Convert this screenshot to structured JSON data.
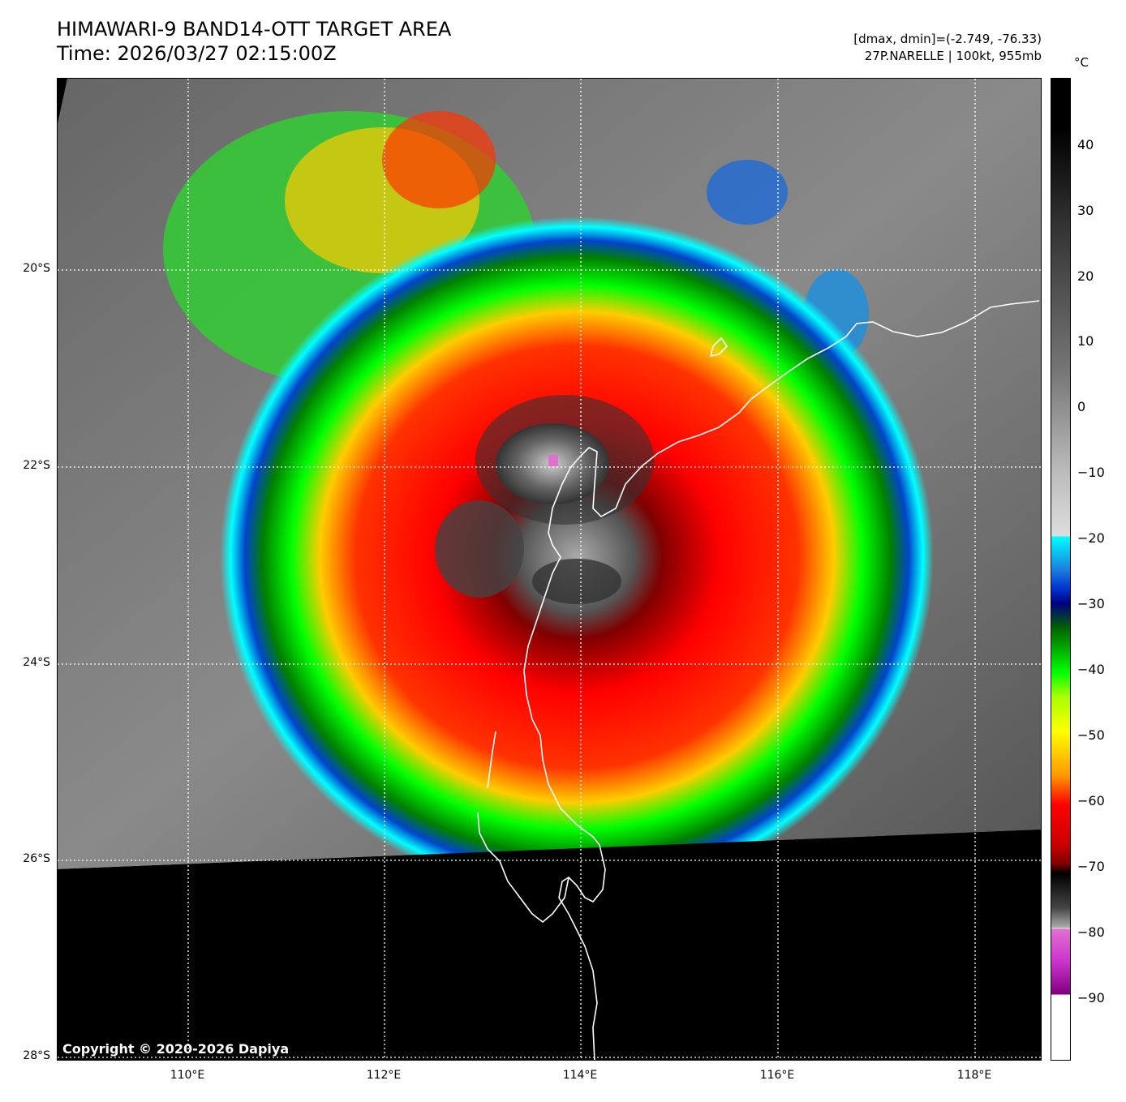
{
  "title": {
    "line1": "HIMAWARI-9 BAND14-OTT TARGET AREA",
    "line2": "Time: 2026/03/27 02:15:00Z"
  },
  "info": {
    "dmax_dmin": "[dmax, dmin]=(-2.749, -76.33)",
    "storm": "27P.NARELLE | 100kt, 955mb"
  },
  "colorbar": {
    "unit": "°C",
    "ticks": [
      "40",
      "30",
      "20",
      "10",
      "0",
      "−10",
      "−20",
      "−30",
      "−40",
      "−50",
      "−60",
      "−70",
      "−80",
      "−90"
    ],
    "colors": {
      "cyan": "#00ffff",
      "blue": "#0033cc",
      "navy": "#000080",
      "green": "#00ff00",
      "yellow": "#ffff00",
      "red": "#ff0000",
      "dark_red": "#800000",
      "magenta": "#cc33cc"
    }
  },
  "map": {
    "lat_labels": [
      "20°S",
      "22°S",
      "24°S",
      "26°S",
      "28°S"
    ],
    "lon_labels": [
      "110°E",
      "112°E",
      "114°E",
      "116°E",
      "118°E"
    ],
    "copyright": "Copyright © 2020-2026 Dapiya",
    "storm_center": {
      "lat": -22.0,
      "lon": 113.7
    },
    "coastline": "white-line",
    "gridlines": "dotted-white"
  }
}
